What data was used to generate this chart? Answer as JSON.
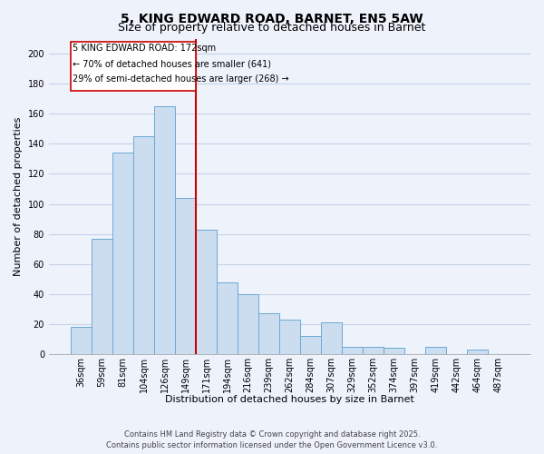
{
  "title": "5, KING EDWARD ROAD, BARNET, EN5 5AW",
  "subtitle": "Size of property relative to detached houses in Barnet",
  "xlabel": "Distribution of detached houses by size in Barnet",
  "ylabel": "Number of detached properties",
  "bar_labels": [
    "36sqm",
    "59sqm",
    "81sqm",
    "104sqm",
    "126sqm",
    "149sqm",
    "171sqm",
    "194sqm",
    "216sqm",
    "239sqm",
    "262sqm",
    "284sqm",
    "307sqm",
    "329sqm",
    "352sqm",
    "374sqm",
    "397sqm",
    "419sqm",
    "442sqm",
    "464sqm",
    "487sqm"
  ],
  "bar_values": [
    18,
    77,
    134,
    145,
    165,
    104,
    83,
    48,
    40,
    27,
    23,
    12,
    21,
    5,
    5,
    4,
    0,
    5,
    0,
    3,
    0
  ],
  "bar_color": "#ccddf0",
  "bar_edge_color": "#6aaad4",
  "vline_x_index": 6,
  "vline_color": "#cc0000",
  "annotation_text_line1": "5 KING EDWARD ROAD: 172sqm",
  "annotation_text_line2": "← 70% of detached houses are smaller (641)",
  "annotation_text_line3": "29% of semi-detached houses are larger (268) →",
  "ylim": [
    0,
    210
  ],
  "yticks": [
    0,
    20,
    40,
    60,
    80,
    100,
    120,
    140,
    160,
    180,
    200
  ],
  "footer_line1": "Contains HM Land Registry data © Crown copyright and database right 2025.",
  "footer_line2": "Contains public sector information licensed under the Open Government Licence v3.0.",
  "bg_color": "#eef2fb",
  "grid_color": "#c5d3e8",
  "title_fontsize": 10,
  "subtitle_fontsize": 9,
  "axis_label_fontsize": 8,
  "tick_fontsize": 7,
  "footer_fontsize": 6,
  "annot_fontsize": 7
}
